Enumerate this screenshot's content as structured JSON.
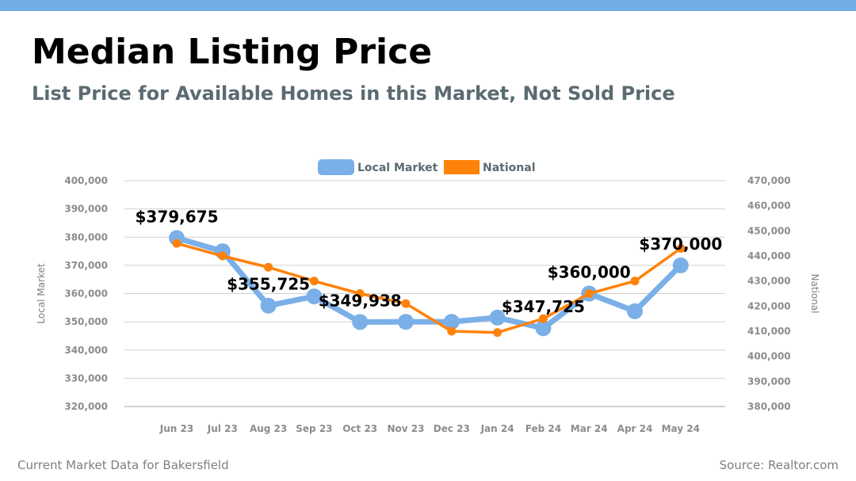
{
  "header": {
    "title": "Median Listing Price",
    "subtitle": "List Price for Available Homes in this Market, Not Sold Price",
    "accent_color": "#72aee6"
  },
  "footer": {
    "left": "Current Market Data for Bakersfield",
    "right": "Source: Realtor.com"
  },
  "chart_data": {
    "type": "line",
    "categories": [
      "Jun 23",
      "Jul 23",
      "Aug 23",
      "Sep 23",
      "Oct 23",
      "Nov 23",
      "Dec 23",
      "Jan 24",
      "Feb 24",
      "Mar 24",
      "Apr 24",
      "May 24"
    ],
    "series": [
      {
        "name": "Local Market",
        "axis": "left",
        "color": "#7aafe8",
        "values": [
          379675,
          375000,
          355725,
          359000,
          349938,
          350000,
          350000,
          351500,
          347725,
          360000,
          353750,
          370000
        ]
      },
      {
        "name": "National",
        "axis": "right",
        "color": "#ff8209",
        "values": [
          445000,
          440000,
          435500,
          430000,
          425000,
          421000,
          410000,
          409500,
          415000,
          425000,
          430000,
          443000
        ]
      }
    ],
    "data_labels": [
      {
        "index": 0,
        "text": "$379,675"
      },
      {
        "index": 2,
        "text": "$355,725"
      },
      {
        "index": 4,
        "text": "$349,938"
      },
      {
        "index": 8,
        "text": "$347,725"
      },
      {
        "index": 9,
        "text": "$360,000"
      },
      {
        "index": 11,
        "text": "$370,000"
      }
    ],
    "ylabel": "Local Market",
    "y2label": "National",
    "ylim": [
      320000,
      400000
    ],
    "y2lim": [
      380000,
      470000
    ],
    "yticks": [
      "400,000",
      "390,000",
      "380,000",
      "370,000",
      "360,000",
      "350,000",
      "340,000",
      "330,000",
      "320,000"
    ],
    "y2ticks": [
      "470,000",
      "460,000",
      "450,000",
      "440,000",
      "430,000",
      "420,000",
      "410,000",
      "400,000",
      "390,000",
      "380,000"
    ],
    "grid": true,
    "legend_position": "top-center"
  }
}
